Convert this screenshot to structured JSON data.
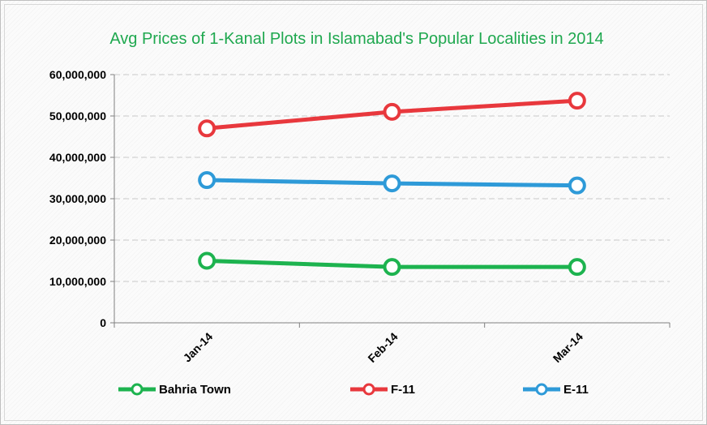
{
  "chart_data": {
    "type": "line",
    "title": "Avg Prices of 1-Kanal Plots in Islamabad's Popular Localities in 2014",
    "categories": [
      "Jan-14",
      "Feb-14",
      "Mar-14"
    ],
    "ylim": [
      0,
      60000000
    ],
    "yticks": [
      {
        "value": 0,
        "label": "0"
      },
      {
        "value": 10000000,
        "label": "10,000,000"
      },
      {
        "value": 20000000,
        "label": "20,000,000"
      },
      {
        "value": 30000000,
        "label": "30,000,000"
      },
      {
        "value": 40000000,
        "label": "40,000,000"
      },
      {
        "value": 50000000,
        "label": "50,000,000"
      },
      {
        "value": 60000000,
        "label": "60,000,000"
      }
    ],
    "grid": true,
    "legend_position": "bottom",
    "series": [
      {
        "name": "Bahria Town",
        "color": "#1db34f",
        "values": [
          15000000,
          13500000,
          13500000
        ]
      },
      {
        "name": "F-11",
        "color": "#e8383d",
        "values": [
          47000000,
          51000000,
          53700000
        ]
      },
      {
        "name": "E-11",
        "color": "#2e9ad8",
        "values": [
          34500000,
          33700000,
          33200000
        ]
      }
    ]
  }
}
